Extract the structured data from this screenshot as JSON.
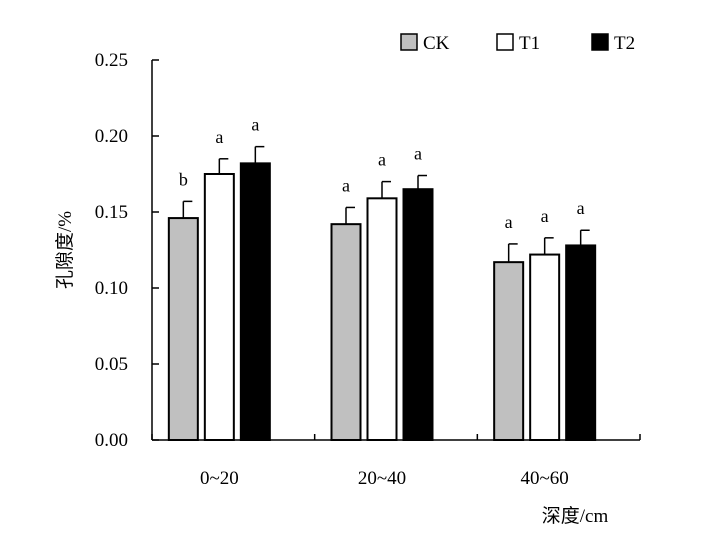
{
  "chart_data": {
    "type": "bar",
    "title": "",
    "xlabel": "深度/cm",
    "ylabel": "孔隙度/%",
    "ylim": [
      0,
      0.25
    ],
    "yticks": [
      "0.00",
      "0.05",
      "0.10",
      "0.15",
      "0.20",
      "0.25"
    ],
    "categories": [
      "0~20",
      "20~40",
      "40~60"
    ],
    "legend_position": "top-right",
    "grid": false,
    "error_bars": true,
    "series": [
      {
        "name": "CK",
        "color": "#c0c0c0",
        "values": [
          0.146,
          0.142,
          0.117
        ],
        "errors": [
          0.011,
          0.011,
          0.012
        ],
        "labels": [
          "b",
          "a",
          "a"
        ]
      },
      {
        "name": "T1",
        "color": "#ffffff",
        "values": [
          0.175,
          0.159,
          0.122
        ],
        "errors": [
          0.01,
          0.011,
          0.011
        ],
        "labels": [
          "a",
          "a",
          "a"
        ]
      },
      {
        "name": "T2",
        "color": "#000000",
        "values": [
          0.182,
          0.165,
          0.128
        ],
        "errors": [
          0.011,
          0.009,
          0.01
        ],
        "labels": [
          "a",
          "a",
          "a"
        ]
      }
    ]
  }
}
